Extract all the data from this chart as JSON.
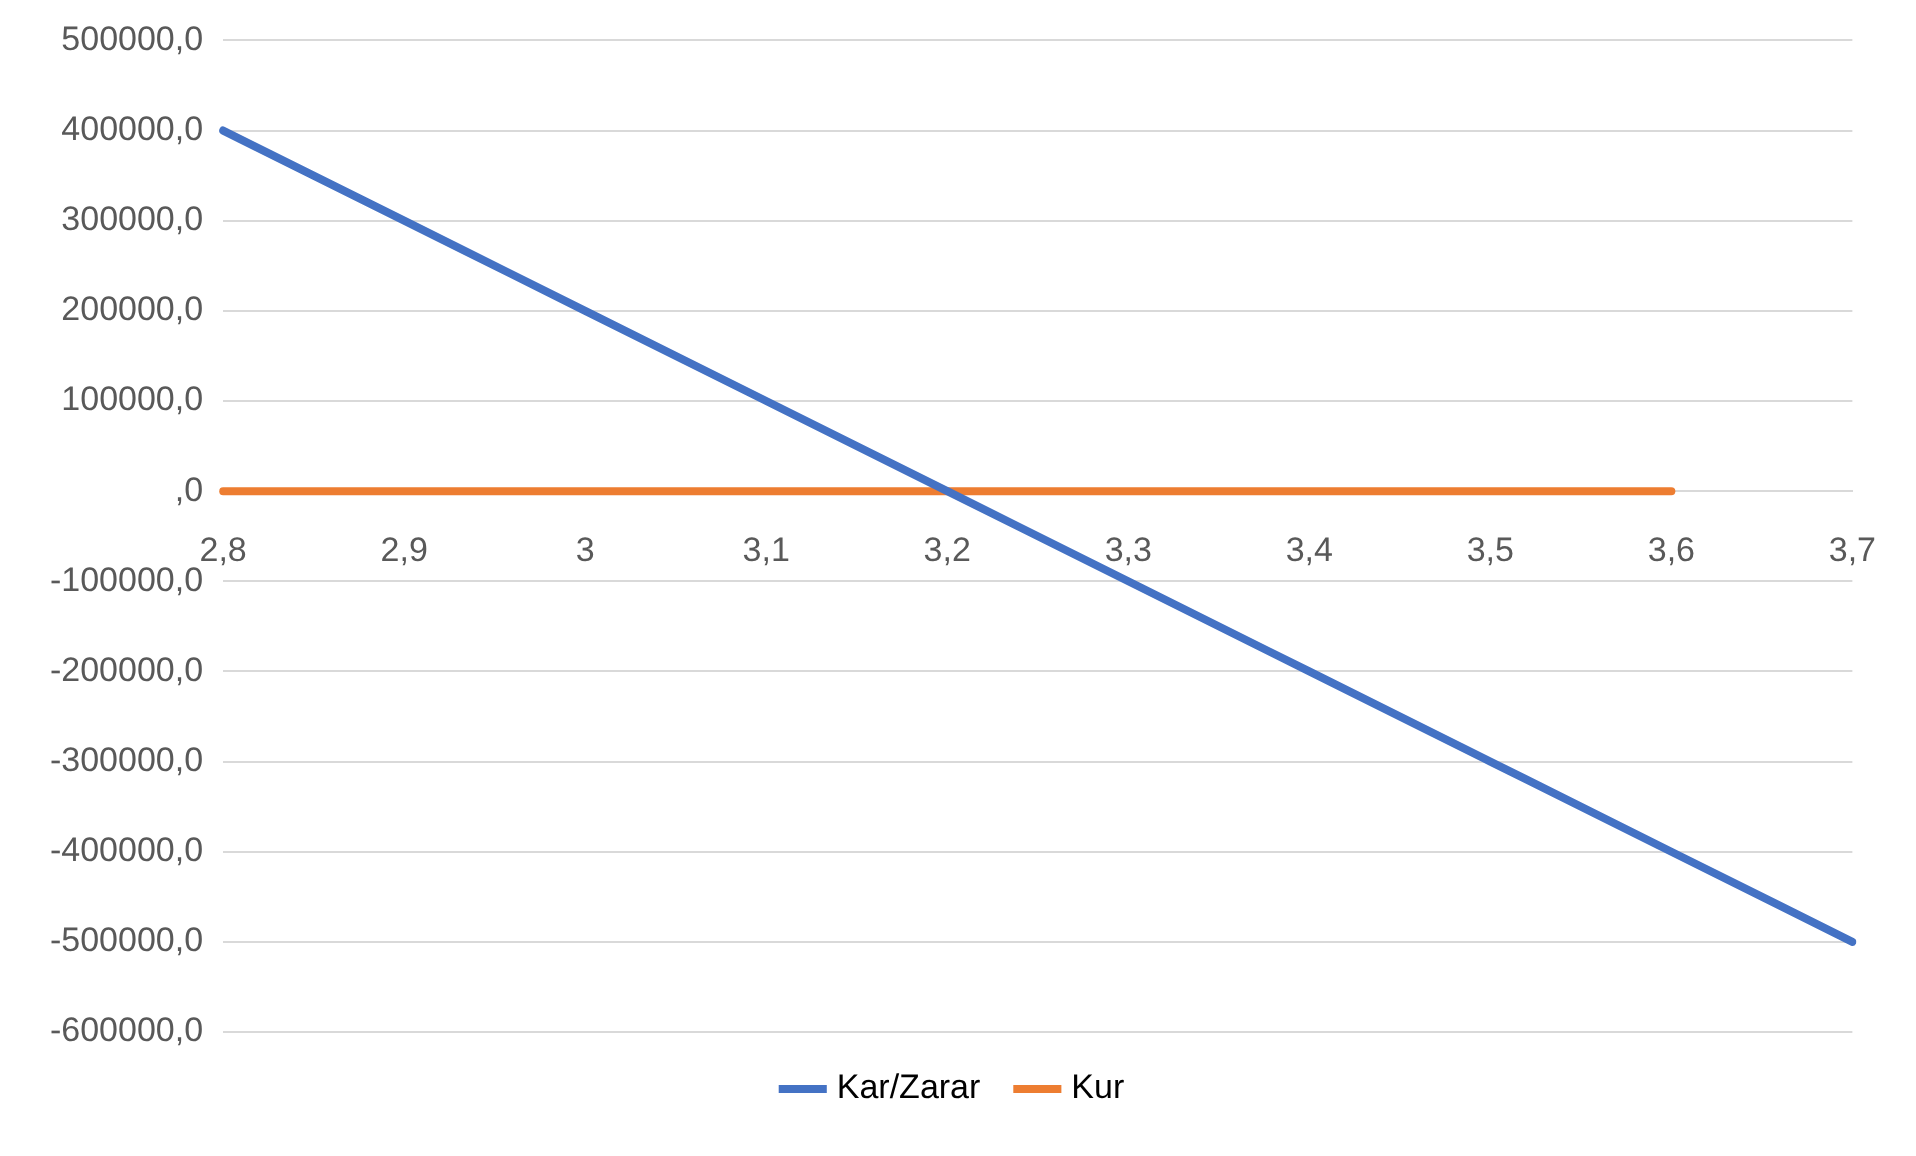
{
  "chart_data": {
    "type": "line",
    "categories": [
      "2,8",
      "2,9",
      "3",
      "3,1",
      "3,2",
      "3,3",
      "3,4",
      "3,5",
      "3,6",
      "3,7"
    ],
    "series": [
      {
        "name": "Kar/Zarar",
        "color": "#4472c4",
        "values": [
          400000,
          300000,
          200000,
          100000,
          0,
          -100000,
          -200000,
          -300000,
          -400000,
          -500000
        ]
      },
      {
        "name": "Kur",
        "color": "#ed7d31",
        "values": [
          0,
          0,
          0,
          0,
          0,
          0,
          0,
          0,
          0,
          null
        ]
      }
    ],
    "ylim": [
      -600000,
      500000
    ],
    "yticks": [
      {
        "value": -600000,
        "label": "-600000,0"
      },
      {
        "value": -500000,
        "label": "-500000,0"
      },
      {
        "value": -400000,
        "label": "-400000,0"
      },
      {
        "value": -300000,
        "label": "-300000,0"
      },
      {
        "value": -200000,
        "label": "-200000,0"
      },
      {
        "value": -100000,
        "label": "-100000,0"
      },
      {
        "value": 0,
        "label": ",0"
      },
      {
        "value": 100000,
        "label": "100000,0"
      },
      {
        "value": 200000,
        "label": "200000,0"
      },
      {
        "value": 300000,
        "label": "300000,0"
      },
      {
        "value": 400000,
        "label": "400000,0"
      },
      {
        "value": 500000,
        "label": "500000,0"
      }
    ],
    "grid": "y",
    "legend": "bottom",
    "marker": "none",
    "line_style": "solid"
  }
}
